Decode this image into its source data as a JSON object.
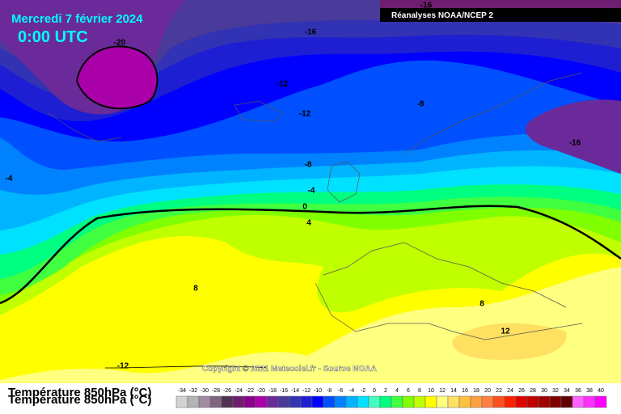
{
  "header": {
    "title": "Mercredi 7 février 2024",
    "time": "0:00 UTC",
    "source": "Réanalyses NOAA/NCEP 2"
  },
  "contour_labels": [
    -16,
    -20,
    -16,
    -12,
    -12,
    -8,
    -8,
    -16,
    -4,
    -4,
    0,
    4,
    8,
    8,
    12,
    -12
  ],
  "copyright": "Copyright © 2021 Meteociel.fr - Source NOAA",
  "legend": {
    "title": "Température 850hPa (°C)",
    "labels": [
      -34,
      -32,
      -30,
      -28,
      -26,
      -24,
      -22,
      -20,
      -18,
      -16,
      -14,
      -12,
      -10,
      -8,
      -6,
      -4,
      -2,
      0,
      2,
      4,
      6,
      8,
      10,
      12,
      14,
      16,
      18,
      20,
      22,
      24,
      26,
      28,
      30,
      32,
      34,
      36,
      38,
      40
    ],
    "colors": [
      "#d2d2d2",
      "#b4b4b4",
      "#a08ca0",
      "#806480",
      "#503250",
      "#6e1e6e",
      "#8c008c",
      "#aa00aa",
      "#6a2a9a",
      "#4a3a9a",
      "#3232b4",
      "#1e1ed2",
      "#0000ff",
      "#0050ff",
      "#0082ff",
      "#00b4ff",
      "#00e1ff",
      "#40ffc0",
      "#00ff80",
      "#40ff40",
      "#80ff00",
      "#c0ff00",
      "#ffff00",
      "#ffff80",
      "#ffe060",
      "#ffc040",
      "#ffa040",
      "#ff8040",
      "#ff5020",
      "#ff2000",
      "#e00000",
      "#c00000",
      "#a00000",
      "#800000",
      "#600000",
      "#ff60ff",
      "#ff30ff",
      "#ff00ff"
    ]
  }
}
